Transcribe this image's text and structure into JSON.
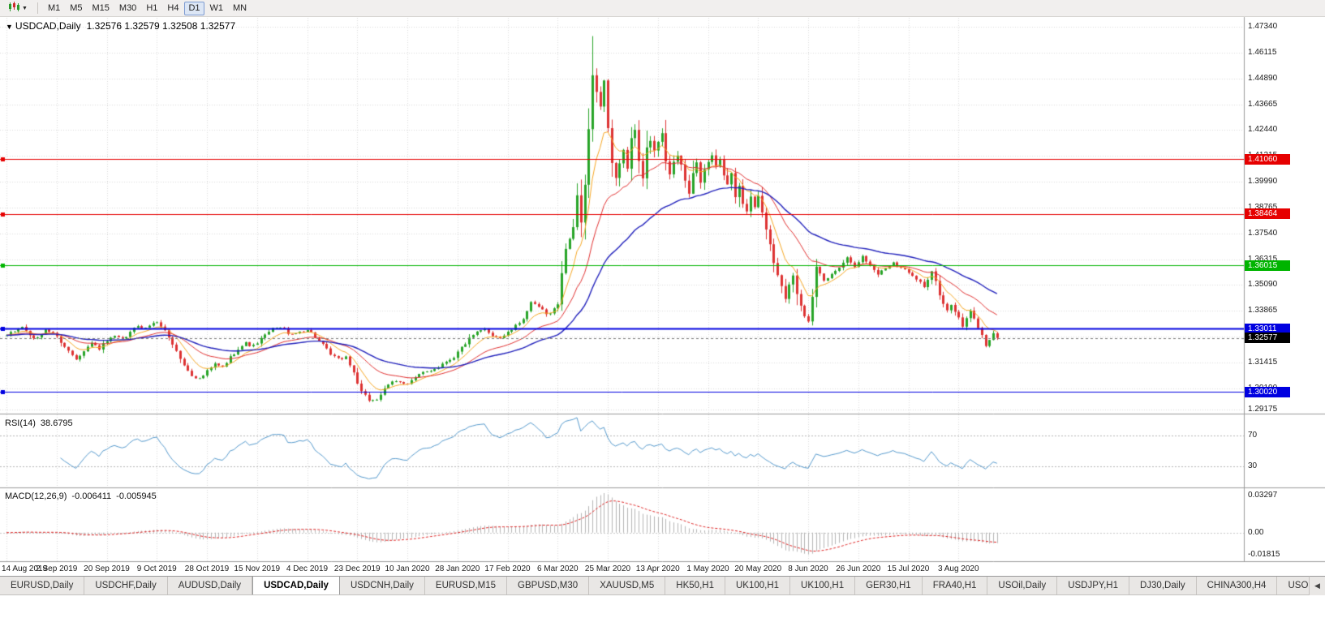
{
  "toolbar": {
    "chart_type_icon": "candlestick-chart-icon",
    "timeframes": [
      "M1",
      "M5",
      "M15",
      "M30",
      "H1",
      "H4",
      "D1",
      "W1",
      "MN"
    ],
    "active_timeframe": "D1"
  },
  "chart": {
    "symbol": "USDCAD,Daily",
    "ohlc": "1.32576 1.32579 1.32508 1.32577",
    "current_price": "1.32577"
  },
  "indicators": {
    "rsi": {
      "label": "RSI(14)",
      "value": "38.6795"
    },
    "macd": {
      "label": "MACD(12,26,9)",
      "main": "-0.006411",
      "signal": "-0.005945"
    }
  },
  "price_axis": {
    "labels": [
      "1.47340",
      "1.46115",
      "1.44890",
      "1.43665",
      "1.42440",
      "1.41215",
      "1.39990",
      "1.38765",
      "1.37540",
      "1.36315",
      "1.35090",
      "1.33865",
      "1.32640",
      "1.31415",
      "1.30190",
      "1.29175"
    ]
  },
  "rsi_axis": {
    "levels": [
      {
        "text": "70",
        "value": 70
      },
      {
        "text": "30",
        "value": 30
      }
    ]
  },
  "macd_axis": {
    "top_label": "0.03297",
    "zero_label": "0.00",
    "bottom_label": "-0.01815",
    "bottom_value": -0.01815
  },
  "date_axis": {
    "candles_per_label": 13,
    "labels": [
      "14 Aug 2019",
      "2 Sep 2019",
      "20 Sep 2019",
      "9 Oct 2019",
      "28 Oct 2019",
      "15 Nov 2019",
      "4 Dec 2019",
      "23 Dec 2019",
      "10 Jan 2020",
      "28 Jan 2020",
      "17 Feb 2020",
      "6 Mar 2020",
      "25 Mar 2020",
      "13 Apr 2020",
      "1 May 2020",
      "20 May 2020",
      "8 Jun 2020",
      "26 Jun 2020",
      "15 Jul 2020",
      "3 Aug 2020"
    ]
  },
  "tabs": {
    "items": [
      "EURUSD,Daily",
      "USDCHF,Daily",
      "AUDUSD,Daily",
      "USDCAD,Daily",
      "USDCNH,Daily",
      "EURUSD,M15",
      "GBPUSD,M30",
      "XAUUSD,M5",
      "HK50,H1",
      "UK100,H1",
      "UK100,H1",
      "GER30,H1",
      "FRA40,H1",
      "USOil,Daily",
      "USDJPY,H1",
      "DJ30,Daily",
      "CHINA300,H4",
      "USOil,D"
    ],
    "active": "USDCAD,Daily",
    "scroll_left_icon": "◀"
  },
  "chart_data": {
    "type": "candlestick",
    "symbol": "USDCAD",
    "timeframe": "Daily",
    "x_range": [
      "14 Aug 2019",
      "12 Aug 2020"
    ],
    "y_range": [
      1.2906,
      1.4769
    ],
    "candle_count": 258,
    "last_close": 1.32577,
    "spike_high": [
      152,
      1.469
    ],
    "close_waypoints": [
      [
        0,
        1.327
      ],
      [
        2,
        1.3288
      ],
      [
        4,
        1.3312
      ],
      [
        6,
        1.3268
      ],
      [
        8,
        1.3252
      ],
      [
        10,
        1.3298
      ],
      [
        12,
        1.3282
      ],
      [
        14,
        1.324
      ],
      [
        16,
        1.3195
      ],
      [
        18,
        1.316
      ],
      [
        20,
        1.32
      ],
      [
        22,
        1.3232
      ],
      [
        24,
        1.3208
      ],
      [
        26,
        1.3242
      ],
      [
        28,
        1.3262
      ],
      [
        30,
        1.3248
      ],
      [
        32,
        1.3282
      ],
      [
        34,
        1.3318
      ],
      [
        36,
        1.3302
      ],
      [
        38,
        1.3332
      ],
      [
        40,
        1.3318
      ],
      [
        42,
        1.3262
      ],
      [
        44,
        1.3195
      ],
      [
        46,
        1.3125
      ],
      [
        48,
        1.3082
      ],
      [
        50,
        1.3062
      ],
      [
        52,
        1.3098
      ],
      [
        54,
        1.3132
      ],
      [
        56,
        1.3118
      ],
      [
        58,
        1.3165
      ],
      [
        60,
        1.3208
      ],
      [
        62,
        1.3232
      ],
      [
        64,
        1.3218
      ],
      [
        66,
        1.3252
      ],
      [
        68,
        1.3285
      ],
      [
        70,
        1.3312
      ],
      [
        72,
        1.3298
      ],
      [
        74,
        1.3268
      ],
      [
        76,
        1.3288
      ],
      [
        78,
        1.3298
      ],
      [
        80,
        1.3262
      ],
      [
        82,
        1.3222
      ],
      [
        84,
        1.3178
      ],
      [
        86,
        1.3155
      ],
      [
        88,
        1.3168
      ],
      [
        90,
        1.3092
      ],
      [
        92,
        1.2998
      ],
      [
        94,
        1.2962
      ],
      [
        96,
        1.2968
      ],
      [
        98,
        1.3012
      ],
      [
        100,
        1.3048
      ],
      [
        102,
        1.3052
      ],
      [
        104,
        1.3042
      ],
      [
        106,
        1.3068
      ],
      [
        108,
        1.3092
      ],
      [
        110,
        1.3105
      ],
      [
        112,
        1.3122
      ],
      [
        114,
        1.3148
      ],
      [
        116,
        1.3168
      ],
      [
        118,
        1.3212
      ],
      [
        120,
        1.3252
      ],
      [
        122,
        1.3282
      ],
      [
        124,
        1.3298
      ],
      [
        126,
        1.3272
      ],
      [
        128,
        1.3258
      ],
      [
        130,
        1.3282
      ],
      [
        132,
        1.3312
      ],
      [
        134,
        1.3352
      ],
      [
        136,
        1.342
      ],
      [
        138,
        1.3405
      ],
      [
        140,
        1.3368
      ],
      [
        142,
        1.3395
      ],
      [
        143,
        1.342
      ],
      [
        144,
        1.356
      ],
      [
        145,
        1.3685
      ],
      [
        146,
        1.3728
      ],
      [
        147,
        1.3788
      ],
      [
        148,
        1.3928
      ],
      [
        149,
        1.3808
      ],
      [
        150,
        1.3988
      ],
      [
        151,
        1.4248
      ],
      [
        152,
        1.4498
      ],
      [
        153,
        1.4428
      ],
      [
        154,
        1.4352
      ],
      [
        155,
        1.4478
      ],
      [
        156,
        1.4252
      ],
      [
        157,
        1.4082
      ],
      [
        158,
        1.4012
      ],
      [
        159,
        1.4088
      ],
      [
        160,
        1.4148
      ],
      [
        161,
        1.4058
      ],
      [
        162,
        1.4208
      ],
      [
        163,
        1.4238
      ],
      [
        164,
        1.4098
      ],
      [
        165,
        1.4022
      ],
      [
        166,
        1.4158
      ],
      [
        167,
        1.4198
      ],
      [
        168,
        1.4148
      ],
      [
        169,
        1.4188
      ],
      [
        170,
        1.4228
      ],
      [
        171,
        1.4088
      ],
      [
        172,
        1.4028
      ],
      [
        173,
        1.4088
      ],
      [
        174,
        1.4128
      ],
      [
        175,
        1.4078
      ],
      [
        176,
        1.3998
      ],
      [
        177,
        1.3948
      ],
      [
        178,
        1.4048
      ],
      [
        179,
        1.4098
      ],
      [
        180,
        1.3988
      ],
      [
        181,
        1.4058
      ],
      [
        182,
        1.4088
      ],
      [
        183,
        1.4128
      ],
      [
        184,
        1.4078
      ],
      [
        185,
        1.4108
      ],
      [
        186,
        1.4028
      ],
      [
        187,
        1.3978
      ],
      [
        188,
        1.4038
      ],
      [
        189,
        1.3928
      ],
      [
        190,
        1.3978
      ],
      [
        191,
        1.3898
      ],
      [
        192,
        1.3852
      ],
      [
        193,
        1.3928
      ],
      [
        194,
        1.3878
      ],
      [
        195,
        1.3928
      ],
      [
        196,
        1.3848
      ],
      [
        197,
        1.3778
      ],
      [
        198,
        1.3698
      ],
      [
        199,
        1.3618
      ],
      [
        200,
        1.3558
      ],
      [
        201,
        1.3508
      ],
      [
        202,
        1.3448
      ],
      [
        203,
        1.3508
      ],
      [
        204,
        1.3558
      ],
      [
        205,
        1.3468
      ],
      [
        206,
        1.3418
      ],
      [
        207,
        1.3368
      ],
      [
        208,
        1.3342
      ],
      [
        209,
        1.3448
      ],
      [
        210,
        1.3588
      ],
      [
        212,
        1.3528
      ],
      [
        214,
        1.3558
      ],
      [
        216,
        1.3598
      ],
      [
        218,
        1.3638
      ],
      [
        220,
        1.3602
      ],
      [
        222,
        1.3642
      ],
      [
        224,
        1.3602
      ],
      [
        226,
        1.3562
      ],
      [
        228,
        1.3588
      ],
      [
        230,
        1.3618
      ],
      [
        232,
        1.3588
      ],
      [
        234,
        1.3572
      ],
      [
        236,
        1.3542
      ],
      [
        238,
        1.3502
      ],
      [
        240,
        1.3568
      ],
      [
        241,
        1.3528
      ],
      [
        242,
        1.3458
      ],
      [
        243,
        1.3412
      ],
      [
        244,
        1.3388
      ],
      [
        245,
        1.3422
      ],
      [
        246,
        1.3388
      ],
      [
        247,
        1.3352
      ],
      [
        248,
        1.3312
      ],
      [
        249,
        1.3348
      ],
      [
        250,
        1.3382
      ],
      [
        251,
        1.3348
      ],
      [
        252,
        1.3308
      ],
      [
        253,
        1.3268
      ],
      [
        254,
        1.3222
      ],
      [
        255,
        1.3252
      ],
      [
        256,
        1.3282
      ],
      [
        257,
        1.32577
      ]
    ],
    "overlays": [
      {
        "name": "ma-fast",
        "type": "ema",
        "period": 8,
        "color": "#f5a623"
      },
      {
        "name": "ma-mid",
        "type": "ema",
        "period": 21,
        "color": "#e03030"
      },
      {
        "name": "ma-slow",
        "type": "ema",
        "period": 45,
        "color": "#2020bb"
      }
    ],
    "horizontal_lines": [
      {
        "price": 1.4106,
        "label": "1.41060",
        "color": "#e60000",
        "width": 1
      },
      {
        "price": 1.38464,
        "label": "1.38464",
        "color": "#e60000",
        "width": 1
      },
      {
        "price": 1.36015,
        "label": "1.36015",
        "color": "#00b400",
        "width": 1
      },
      {
        "price": 1.33011,
        "label": "1.33011",
        "color": "#0000e0",
        "width": 2
      },
      {
        "price": 1.3002,
        "label": "1.30020",
        "color": "#0000e0",
        "width": 1
      }
    ],
    "sub_indicators": [
      {
        "name": "RSI",
        "period": 14,
        "current": 38.6795,
        "levels": [
          70,
          30
        ],
        "color": "#5599cc"
      },
      {
        "name": "MACD",
        "params": [
          12,
          26,
          9
        ],
        "current_main": -0.006411,
        "current_signal": -0.005945,
        "histogram_color": "#b4b4b4",
        "signal_color": "#dd2222"
      }
    ],
    "up_color": "#28a428",
    "down_color": "#dd3333",
    "current_price_color": "#000000"
  }
}
